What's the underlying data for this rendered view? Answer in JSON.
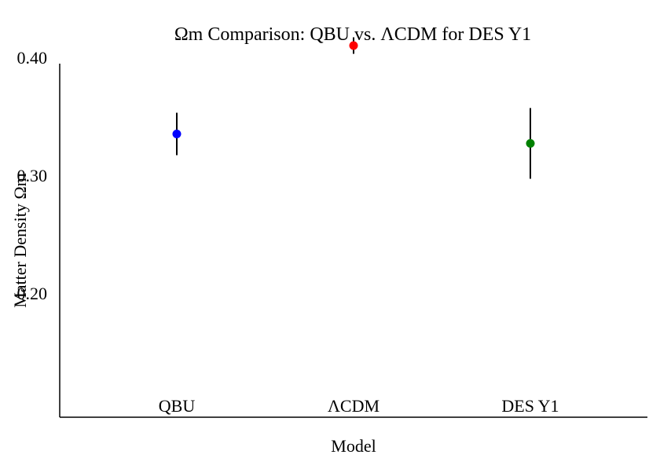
{
  "chart_data": {
    "type": "scatter",
    "title": "Ωm Comparison: QBU vs. ΛCDM for DES Y1",
    "xlabel": "Model",
    "ylabel": "Matter Density Ωm",
    "categories": [
      "QBU",
      "ΛCDM",
      "DES Y1"
    ],
    "values": [
      0.335,
      0.41,
      0.327
    ],
    "errors": [
      0.018,
      0.007,
      0.03
    ],
    "colors": [
      "#0000ff",
      "#ff0000",
      "#008000"
    ],
    "yticks": [
      "0.40",
      "0.30",
      "0.20"
    ],
    "ylim": [
      0.1,
      0.4
    ],
    "grid": false,
    "legend": "none"
  }
}
